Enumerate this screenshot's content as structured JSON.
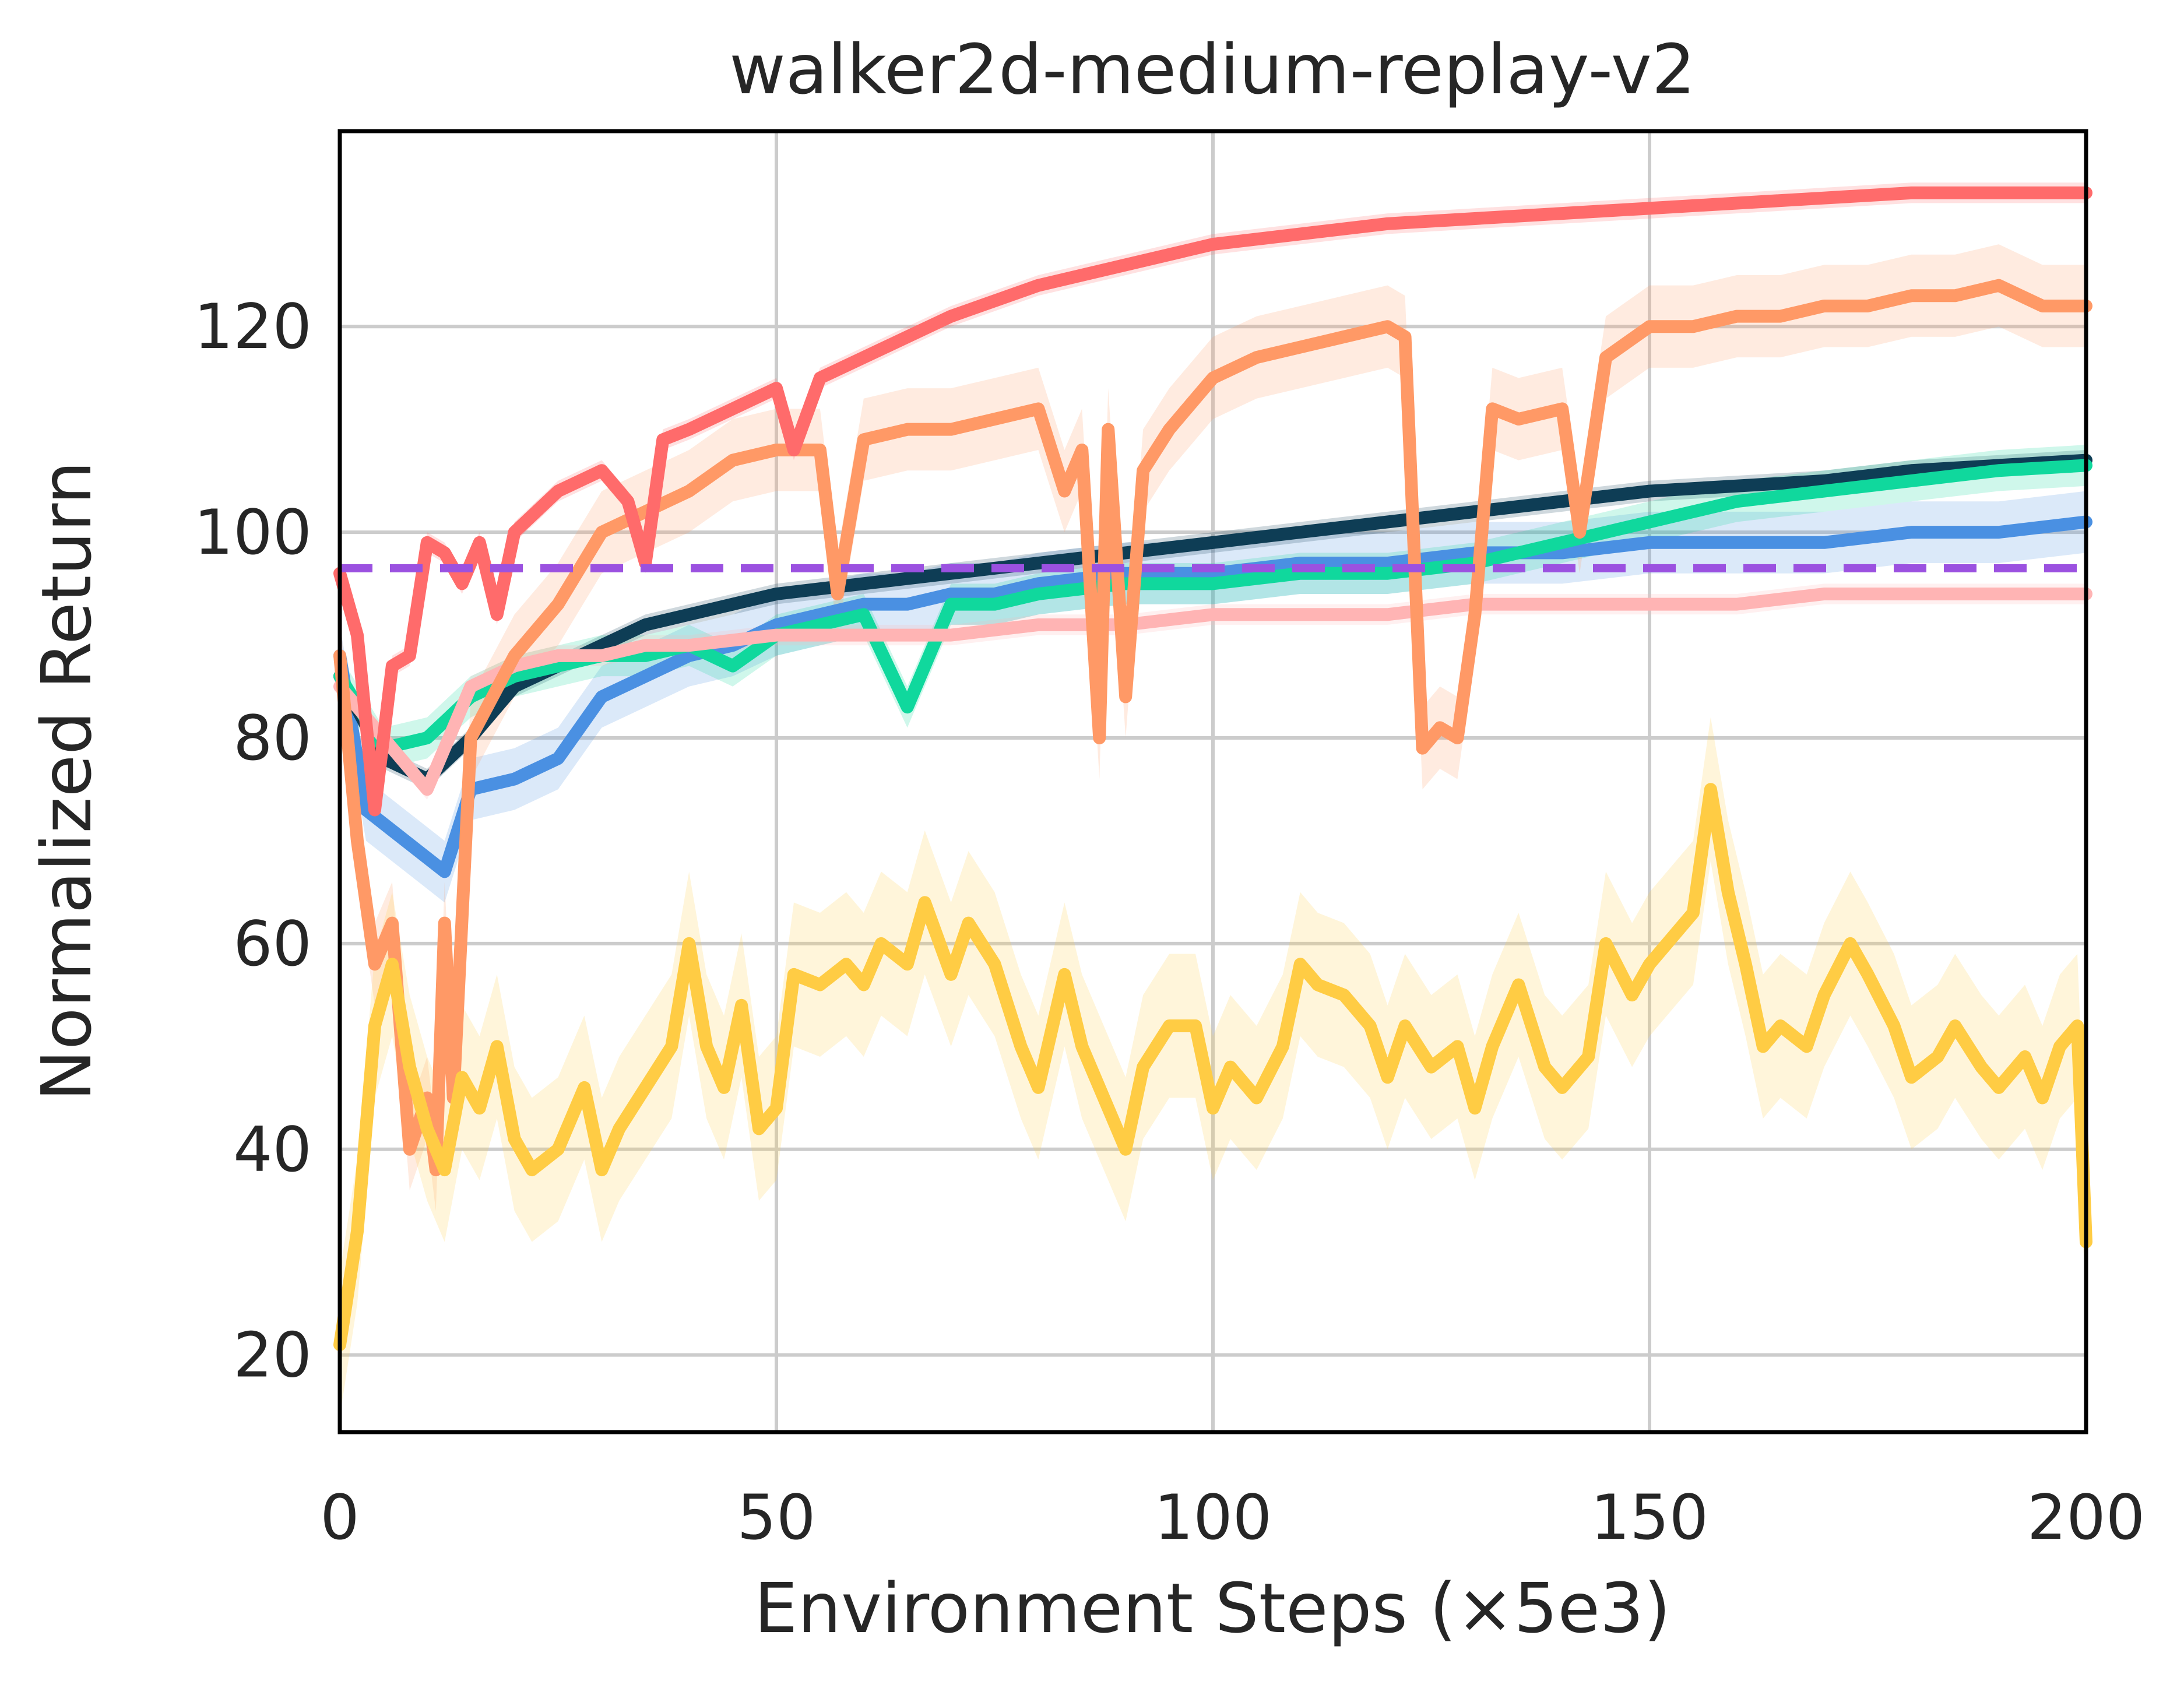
{
  "chart_data": {
    "type": "line",
    "title": "walker2d-medium-replay-v2",
    "xlabel": "Environment Steps (×5e3)",
    "ylabel": "Normalized Return",
    "xlim": [
      0,
      200
    ],
    "ylim": [
      12.5,
      139
    ],
    "xticks": [
      0,
      50,
      100,
      150,
      200
    ],
    "yticks": [
      20,
      40,
      60,
      80,
      100,
      120
    ],
    "grid": true,
    "legend": "none",
    "reference_line": {
      "y": 96.5,
      "color": "#9b51e0",
      "style": "dashed"
    },
    "series": [
      {
        "color": "#4a90e2",
        "band_width": 3,
        "points": [
          [
            0,
            88
          ],
          [
            3,
            73
          ],
          [
            6,
            71
          ],
          [
            9,
            69
          ],
          [
            12,
            67
          ],
          [
            15,
            75
          ],
          [
            20,
            76
          ],
          [
            25,
            78
          ],
          [
            30,
            84
          ],
          [
            35,
            86
          ],
          [
            40,
            88
          ],
          [
            45,
            89
          ],
          [
            50,
            91
          ],
          [
            55,
            92
          ],
          [
            60,
            93
          ],
          [
            65,
            93
          ],
          [
            70,
            94
          ],
          [
            75,
            94
          ],
          [
            80,
            95
          ],
          [
            90,
            96
          ],
          [
            100,
            96
          ],
          [
            110,
            97
          ],
          [
            120,
            97
          ],
          [
            130,
            98
          ],
          [
            140,
            98
          ],
          [
            150,
            99
          ],
          [
            160,
            99
          ],
          [
            170,
            99
          ],
          [
            180,
            100
          ],
          [
            190,
            100
          ],
          [
            200,
            101
          ]
        ]
      },
      {
        "color": "#0e3d55",
        "band_width": 1,
        "points": [
          [
            0,
            86
          ],
          [
            5,
            78
          ],
          [
            10,
            76
          ],
          [
            15,
            80
          ],
          [
            20,
            85
          ],
          [
            25,
            87
          ],
          [
            30,
            89
          ],
          [
            35,
            91
          ],
          [
            40,
            92
          ],
          [
            45,
            93
          ],
          [
            50,
            94
          ],
          [
            60,
            95
          ],
          [
            70,
            96
          ],
          [
            80,
            97
          ],
          [
            90,
            98
          ],
          [
            100,
            99
          ],
          [
            110,
            100
          ],
          [
            120,
            101
          ],
          [
            130,
            102
          ],
          [
            140,
            103
          ],
          [
            150,
            104
          ],
          [
            160,
            104.5
          ],
          [
            170,
            105
          ],
          [
            180,
            106
          ],
          [
            190,
            106.5
          ],
          [
            200,
            107
          ]
        ]
      },
      {
        "color": "#10d89d",
        "band_width": 2,
        "points": [
          [
            0,
            86
          ],
          [
            5,
            79
          ],
          [
            10,
            80
          ],
          [
            15,
            84
          ],
          [
            20,
            86
          ],
          [
            25,
            87
          ],
          [
            30,
            88
          ],
          [
            35,
            88
          ],
          [
            40,
            89
          ],
          [
            45,
            87
          ],
          [
            50,
            90
          ],
          [
            55,
            91
          ],
          [
            60,
            92
          ],
          [
            65,
            83
          ],
          [
            70,
            93
          ],
          [
            75,
            93
          ],
          [
            80,
            94
          ],
          [
            90,
            95
          ],
          [
            100,
            95
          ],
          [
            110,
            96
          ],
          [
            120,
            96
          ],
          [
            130,
            97
          ],
          [
            140,
            99
          ],
          [
            150,
            101
          ],
          [
            160,
            103
          ],
          [
            170,
            104
          ],
          [
            180,
            105
          ],
          [
            190,
            106
          ],
          [
            200,
            106.5
          ]
        ]
      },
      {
        "color": "#ffb4b4",
        "band_width": 1,
        "points": [
          [
            0,
            85
          ],
          [
            5,
            80
          ],
          [
            10,
            75
          ],
          [
            15,
            85
          ],
          [
            20,
            87
          ],
          [
            25,
            88
          ],
          [
            30,
            88
          ],
          [
            35,
            89
          ],
          [
            40,
            89
          ],
          [
            50,
            90
          ],
          [
            60,
            90
          ],
          [
            70,
            90
          ],
          [
            80,
            91
          ],
          [
            90,
            91
          ],
          [
            100,
            92
          ],
          [
            110,
            92
          ],
          [
            120,
            92
          ],
          [
            130,
            93
          ],
          [
            140,
            93
          ],
          [
            150,
            93
          ],
          [
            160,
            93
          ],
          [
            170,
            94
          ],
          [
            180,
            94
          ],
          [
            190,
            94
          ],
          [
            200,
            94
          ]
        ]
      },
      {
        "color": "#ff9966",
        "band_width": 4,
        "points": [
          [
            0,
            88
          ],
          [
            2,
            70
          ],
          [
            4,
            58
          ],
          [
            6,
            62
          ],
          [
            8,
            40
          ],
          [
            10,
            45
          ],
          [
            11,
            38
          ],
          [
            12,
            62
          ],
          [
            13,
            45
          ],
          [
            15,
            80
          ],
          [
            20,
            88
          ],
          [
            25,
            93
          ],
          [
            30,
            100
          ],
          [
            35,
            102
          ],
          [
            40,
            104
          ],
          [
            45,
            107
          ],
          [
            50,
            108
          ],
          [
            55,
            108
          ],
          [
            57,
            94
          ],
          [
            60,
            109
          ],
          [
            65,
            110
          ],
          [
            70,
            110
          ],
          [
            75,
            111
          ],
          [
            80,
            112
          ],
          [
            83,
            104
          ],
          [
            85,
            108
          ],
          [
            87,
            80
          ],
          [
            88,
            110
          ],
          [
            90,
            84
          ],
          [
            92,
            106
          ],
          [
            95,
            110
          ],
          [
            100,
            115
          ],
          [
            105,
            117
          ],
          [
            110,
            118
          ],
          [
            115,
            119
          ],
          [
            120,
            120
          ],
          [
            122,
            119
          ],
          [
            124,
            79
          ],
          [
            126,
            81
          ],
          [
            128,
            80
          ],
          [
            130,
            92
          ],
          [
            132,
            112
          ],
          [
            135,
            111
          ],
          [
            140,
            112
          ],
          [
            142,
            100
          ],
          [
            145,
            117
          ],
          [
            150,
            120
          ],
          [
            155,
            120
          ],
          [
            160,
            121
          ],
          [
            165,
            121
          ],
          [
            170,
            122
          ],
          [
            175,
            122
          ],
          [
            180,
            123
          ],
          [
            185,
            123
          ],
          [
            190,
            124
          ],
          [
            195,
            122
          ],
          [
            200,
            122
          ]
        ]
      },
      {
        "color": "#ff6b6b",
        "band_width": 1,
        "points": [
          [
            0,
            96
          ],
          [
            2,
            90
          ],
          [
            4,
            73
          ],
          [
            6,
            87
          ],
          [
            8,
            88
          ],
          [
            10,
            99
          ],
          [
            12,
            98
          ],
          [
            14,
            95
          ],
          [
            16,
            99
          ],
          [
            18,
            92
          ],
          [
            20,
            100
          ],
          [
            25,
            104
          ],
          [
            30,
            106
          ],
          [
            33,
            103
          ],
          [
            35,
            97
          ],
          [
            37,
            109
          ],
          [
            40,
            110
          ],
          [
            45,
            112
          ],
          [
            50,
            114
          ],
          [
            52,
            108
          ],
          [
            55,
            115
          ],
          [
            60,
            117
          ],
          [
            65,
            119
          ],
          [
            70,
            121
          ],
          [
            80,
            124
          ],
          [
            90,
            126
          ],
          [
            100,
            128
          ],
          [
            110,
            129
          ],
          [
            120,
            130
          ],
          [
            130,
            130.5
          ],
          [
            140,
            131
          ],
          [
            150,
            131.5
          ],
          [
            160,
            132
          ],
          [
            170,
            132.5
          ],
          [
            180,
            133
          ],
          [
            190,
            133
          ],
          [
            200,
            133
          ]
        ]
      },
      {
        "color": "#ffcc44",
        "band_width": 7,
        "points": [
          [
            0,
            21
          ],
          [
            2,
            32
          ],
          [
            4,
            52
          ],
          [
            6,
            58
          ],
          [
            8,
            48
          ],
          [
            10,
            42
          ],
          [
            12,
            38
          ],
          [
            14,
            47
          ],
          [
            16,
            44
          ],
          [
            18,
            50
          ],
          [
            20,
            41
          ],
          [
            22,
            38
          ],
          [
            25,
            40
          ],
          [
            28,
            46
          ],
          [
            30,
            38
          ],
          [
            32,
            42
          ],
          [
            35,
            46
          ],
          [
            38,
            50
          ],
          [
            40,
            60
          ],
          [
            42,
            50
          ],
          [
            44,
            46
          ],
          [
            46,
            54
          ],
          [
            48,
            42
          ],
          [
            50,
            44
          ],
          [
            52,
            57
          ],
          [
            55,
            56
          ],
          [
            58,
            58
          ],
          [
            60,
            56
          ],
          [
            62,
            60
          ],
          [
            65,
            58
          ],
          [
            67,
            64
          ],
          [
            70,
            57
          ],
          [
            72,
            62
          ],
          [
            75,
            58
          ],
          [
            78,
            50
          ],
          [
            80,
            46
          ],
          [
            83,
            57
          ],
          [
            85,
            50
          ],
          [
            88,
            44
          ],
          [
            90,
            40
          ],
          [
            92,
            48
          ],
          [
            95,
            52
          ],
          [
            98,
            52
          ],
          [
            100,
            44
          ],
          [
            102,
            48
          ],
          [
            105,
            45
          ],
          [
            108,
            50
          ],
          [
            110,
            58
          ],
          [
            112,
            56
          ],
          [
            115,
            55
          ],
          [
            118,
            52
          ],
          [
            120,
            47
          ],
          [
            122,
            52
          ],
          [
            125,
            48
          ],
          [
            128,
            50
          ],
          [
            130,
            44
          ],
          [
            132,
            50
          ],
          [
            135,
            56
          ],
          [
            138,
            48
          ],
          [
            140,
            46
          ],
          [
            143,
            49
          ],
          [
            145,
            60
          ],
          [
            148,
            55
          ],
          [
            150,
            58
          ],
          [
            153,
            61
          ],
          [
            155,
            63
          ],
          [
            157,
            75
          ],
          [
            159,
            65
          ],
          [
            161,
            58
          ],
          [
            163,
            50
          ],
          [
            165,
            52
          ],
          [
            168,
            50
          ],
          [
            170,
            55
          ],
          [
            173,
            60
          ],
          [
            175,
            57
          ],
          [
            178,
            52
          ],
          [
            180,
            47
          ],
          [
            183,
            49
          ],
          [
            185,
            52
          ],
          [
            188,
            48
          ],
          [
            190,
            46
          ],
          [
            193,
            49
          ],
          [
            195,
            45
          ],
          [
            197,
            50
          ],
          [
            199,
            52
          ],
          [
            200,
            31
          ]
        ]
      }
    ]
  }
}
